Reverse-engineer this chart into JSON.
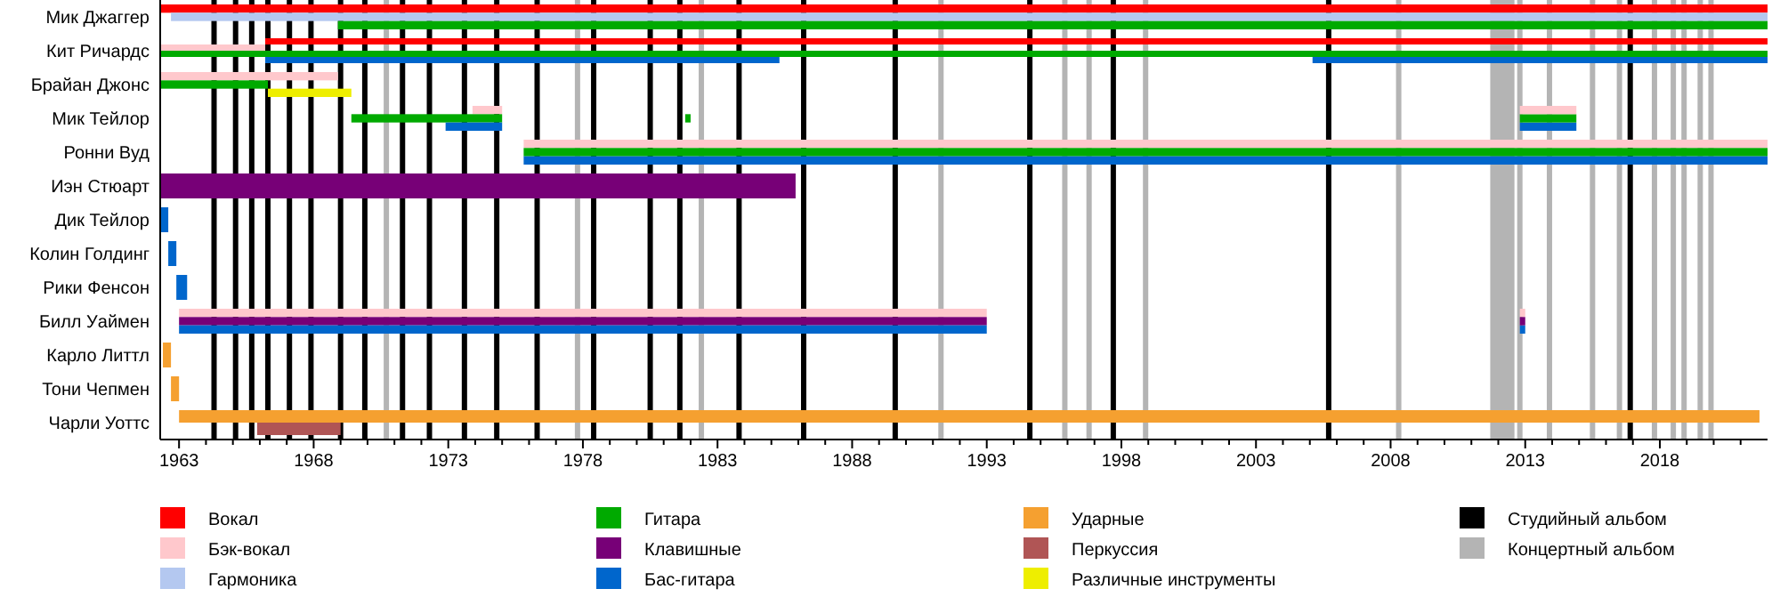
{
  "chart_data": {
    "type": "bar",
    "orientation": "horizontal",
    "legend": "bottom",
    "categories": [
      "Мик Джаггер",
      "Кит Ричардс",
      "Брайан Джонс",
      "Мик Тейлор",
      "Ронни Вуд",
      "Иэн Стюарт",
      "Дик Тейлор",
      "Колин Голдинг",
      "Рики Фенсон",
      "Билл Уаймен",
      "Карло Литтл",
      "Тони Чепмен",
      "Чарли Уоттс"
    ],
    "xlim": [
      1962.3,
      2022.0
    ],
    "xticks": [
      1963,
      {
        "value": 1964,
        "label": null
      },
      {
        "value": 1965,
        "label": null
      },
      {
        "value": 1966,
        "label": null
      },
      {
        "value": 1967,
        "label": null
      },
      1968,
      {
        "value": 1969,
        "label": null
      },
      {
        "value": 1970,
        "label": null
      },
      {
        "value": 1971,
        "label": null
      },
      {
        "value": 1972,
        "label": null
      },
      1973,
      {
        "value": 1974,
        "label": null
      },
      {
        "value": 1975,
        "label": null
      },
      {
        "value": 1976,
        "label": null
      },
      {
        "value": 1977,
        "label": null
      },
      1978,
      {
        "value": 1979,
        "label": null
      },
      {
        "value": 1980,
        "label": null
      },
      {
        "value": 1981,
        "label": null
      },
      {
        "value": 1982,
        "label": null
      },
      1983,
      {
        "value": 1984,
        "label": null
      },
      {
        "value": 1985,
        "label": null
      },
      {
        "value": 1986,
        "label": null
      },
      {
        "value": 1987,
        "label": null
      },
      1988,
      {
        "value": 1989,
        "label": null
      },
      {
        "value": 1990,
        "label": null
      },
      {
        "value": 1991,
        "label": null
      },
      {
        "value": 1992,
        "label": null
      },
      1993,
      {
        "value": 1994,
        "label": null
      },
      {
        "value": 1995,
        "label": null
      },
      {
        "value": 1996,
        "label": null
      },
      {
        "value": 1997,
        "label": null
      },
      1998,
      {
        "value": 1999,
        "label": null
      },
      {
        "value": 2000,
        "label": null
      },
      {
        "value": 2001,
        "label": null
      },
      {
        "value": 2002,
        "label": null
      },
      2003,
      {
        "value": 2004,
        "label": null
      },
      {
        "value": 2005,
        "label": null
      },
      {
        "value": 2006,
        "label": null
      },
      {
        "value": 2007,
        "label": null
      },
      2008,
      {
        "value": 2009,
        "label": null
      },
      {
        "value": 2010,
        "label": null
      },
      {
        "value": 2011,
        "label": null
      },
      {
        "value": 2012,
        "label": null
      },
      2013,
      {
        "value": 2014,
        "label": null
      },
      {
        "value": 2015,
        "label": null
      },
      {
        "value": 2016,
        "label": null
      },
      {
        "value": 2017,
        "label": null
      },
      2018,
      {
        "value": 2019,
        "label": null
      },
      {
        "value": 2020,
        "label": null
      },
      {
        "value": 2021,
        "label": null
      }
    ],
    "series": [
      {
        "name": "Вокал",
        "color": "#ff0000",
        "base": [
          1962.3,
          1966.2,
          null,
          null,
          null,
          null,
          null,
          null,
          null,
          null,
          null,
          null,
          null
        ],
        "values": [
          59.7,
          55.8,
          null,
          null,
          null,
          null,
          null,
          null,
          null,
          null,
          null,
          null,
          null
        ]
      },
      {
        "name": "Бэк-вокал",
        "color": "#ffc8cc",
        "base": [
          null,
          1962.3,
          1962.3,
          1973.9,
          1975.8,
          null,
          null,
          null,
          null,
          1963.0,
          null,
          null,
          null
        ],
        "values": [
          null,
          3.9,
          6.6,
          1.1,
          46.2,
          null,
          null,
          null,
          null,
          30.0,
          null,
          null,
          null
        ]
      },
      {
        "name": "Гармоника",
        "color": "#b4c8f0",
        "base": [
          1962.7,
          null,
          null,
          null,
          null,
          null,
          null,
          null,
          null,
          null,
          null,
          null,
          null
        ],
        "values": [
          59.3,
          null,
          null,
          null,
          null,
          null,
          null,
          null,
          null,
          null,
          null,
          null,
          null
        ]
      },
      {
        "name": "Гитара",
        "color": "#00aa00",
        "base": [
          1968.9,
          1962.3,
          1962.3,
          1969.4,
          1975.8,
          null,
          null,
          null,
          null,
          null,
          null,
          null,
          null
        ],
        "values": [
          53.1,
          59.7,
          4.0,
          5.6,
          46.2,
          null,
          null,
          null,
          null,
          null,
          null,
          null,
          null
        ]
      },
      {
        "name": "Клавишные",
        "color": "#770077",
        "base": [
          null,
          null,
          null,
          null,
          null,
          1962.3,
          null,
          null,
          null,
          1963.0,
          null,
          null,
          null
        ],
        "values": [
          null,
          null,
          null,
          null,
          null,
          23.6,
          null,
          null,
          null,
          30.0,
          null,
          null,
          null
        ]
      },
      {
        "name": "Бас-гитара",
        "color": "#0066cc",
        "base": [
          null,
          1966.2,
          null,
          1972.9,
          1975.8,
          null,
          1962.3,
          1962.6,
          1962.9,
          1963.0,
          null,
          null,
          null
        ],
        "values": [
          null,
          19.1,
          null,
          2.1,
          46.2,
          null,
          0.3,
          0.3,
          0.4,
          30.0,
          null,
          null,
          null
        ]
      },
      {
        "name": "Ударные",
        "color": "#f5a030",
        "base": [
          null,
          null,
          null,
          null,
          null,
          null,
          null,
          null,
          null,
          null,
          1962.4,
          1962.7,
          1963.0
        ],
        "values": [
          null,
          null,
          null,
          null,
          null,
          null,
          null,
          null,
          null,
          null,
          0.3,
          0.3,
          58.7
        ]
      },
      {
        "name": "Перкуссия",
        "color": "#b05555",
        "base": [
          null,
          null,
          null,
          null,
          null,
          null,
          null,
          null,
          null,
          null,
          null,
          null,
          1965.9
        ],
        "values": [
          null,
          null,
          null,
          null,
          null,
          null,
          null,
          null,
          null,
          null,
          null,
          null,
          3.1
        ]
      },
      {
        "name": "Различные инструменты",
        "color": "#eeee00",
        "base": [
          null,
          null,
          1966.3,
          null,
          null,
          null,
          null,
          null,
          null,
          null,
          null,
          null,
          null
        ],
        "values": [
          null,
          null,
          3.1,
          null,
          null,
          null,
          null,
          null,
          null,
          null,
          null,
          null,
          null
        ]
      },
      {
        "color": "#0066cc",
        "base": [
          null,
          2005.1,
          null,
          2012.8,
          null,
          null,
          null,
          null,
          null,
          2012.8,
          null,
          null,
          null
        ],
        "values": [
          null,
          16.9,
          null,
          2.1,
          null,
          null,
          null,
          null,
          null,
          0.2,
          null,
          null,
          null
        ]
      },
      {
        "color": "#00aa00",
        "base": [
          null,
          null,
          null,
          2012.8,
          null,
          null,
          null,
          null,
          null,
          null,
          null,
          null,
          null
        ],
        "values": [
          null,
          null,
          null,
          2.1,
          null,
          null,
          null,
          null,
          null,
          null,
          null,
          null,
          null
        ]
      },
      {
        "color": "#00aa00",
        "base": [
          null,
          null,
          null,
          1981.8,
          null,
          null,
          null,
          null,
          null,
          null,
          null,
          null,
          null
        ],
        "values": [
          null,
          null,
          null,
          0.2,
          null,
          null,
          null,
          null,
          null,
          null,
          null,
          null,
          null
        ]
      },
      {
        "color": "#ffc8cc",
        "base": [
          null,
          null,
          null,
          2012.8,
          null,
          null,
          null,
          null,
          null,
          2012.8,
          null,
          null,
          null
        ],
        "values": [
          null,
          null,
          null,
          2.1,
          null,
          null,
          null,
          null,
          null,
          0.2,
          null,
          null,
          null
        ]
      },
      {
        "color": "#770077",
        "base": [
          null,
          null,
          null,
          null,
          null,
          null,
          null,
          null,
          null,
          2012.8,
          null,
          null,
          null
        ],
        "values": [
          null,
          null,
          null,
          null,
          null,
          null,
          null,
          null,
          null,
          0.2,
          null,
          null,
          null
        ]
      }
    ],
    "ref_lines": [
      {
        "axis": "x",
        "value": 1964.3,
        "color": "#000000",
        "label": "Студийный альбом"
      },
      {
        "axis": "x",
        "value": 1965.1,
        "color": "#000000"
      },
      {
        "axis": "x",
        "value": 1965.7,
        "color": "#000000"
      },
      {
        "axis": "x",
        "value": 1966.3,
        "color": "#000000"
      },
      {
        "axis": "x",
        "value": 1967.1,
        "color": "#000000"
      },
      {
        "axis": "x",
        "value": 1967.9,
        "color": "#000000"
      },
      {
        "axis": "x",
        "value": 1969.0,
        "color": "#000000"
      },
      {
        "axis": "x",
        "value": 1969.9,
        "color": "#000000"
      },
      {
        "axis": "x",
        "value": 1971.3,
        "color": "#000000"
      },
      {
        "axis": "x",
        "value": 1972.3,
        "color": "#000000"
      },
      {
        "axis": "x",
        "value": 1973.6,
        "color": "#000000"
      },
      {
        "axis": "x",
        "value": 1974.8,
        "color": "#000000"
      },
      {
        "axis": "x",
        "value": 1976.3,
        "color": "#000000"
      },
      {
        "axis": "x",
        "value": 1978.4,
        "color": "#000000"
      },
      {
        "axis": "x",
        "value": 1980.5,
        "color": "#000000"
      },
      {
        "axis": "x",
        "value": 1981.6,
        "color": "#000000"
      },
      {
        "axis": "x",
        "value": 1983.8,
        "color": "#000000"
      },
      {
        "axis": "x",
        "value": 1986.2,
        "color": "#000000"
      },
      {
        "axis": "x",
        "value": 1989.6,
        "color": "#000000"
      },
      {
        "axis": "x",
        "value": 1994.6,
        "color": "#000000"
      },
      {
        "axis": "x",
        "value": 1997.7,
        "color": "#000000"
      },
      {
        "axis": "x",
        "value": 2005.7,
        "color": "#000000"
      },
      {
        "axis": "x",
        "value": 2016.9,
        "color": "#000000"
      },
      {
        "axis": "x",
        "value": 1970.7,
        "color": "#b4b4b4",
        "label": "Концертный альбом"
      },
      {
        "axis": "x",
        "value": 1977.8,
        "color": "#b4b4b4"
      },
      {
        "axis": "x",
        "value": 1982.4,
        "color": "#b4b4b4"
      },
      {
        "axis": "x",
        "value": 1991.3,
        "color": "#b4b4b4"
      },
      {
        "axis": "x",
        "value": 1995.9,
        "color": "#b4b4b4"
      },
      {
        "axis": "x",
        "value": 1996.8,
        "color": "#b4b4b4"
      },
      {
        "axis": "x",
        "value": 1998.9,
        "color": "#b4b4b4"
      },
      {
        "axis": "x",
        "value": 2008.3,
        "color": "#b4b4b4"
      },
      {
        "axis": "x",
        "value": 2012.8,
        "color": "#b4b4b4"
      },
      {
        "axis": "x",
        "value": 2013.9,
        "color": "#b4b4b4"
      },
      {
        "axis": "x",
        "value": 2015.5,
        "color": "#b4b4b4"
      },
      {
        "axis": "x",
        "value": 2016.5,
        "color": "#b4b4b4"
      },
      {
        "axis": "x",
        "value": 2017.8,
        "color": "#b4b4b4"
      },
      {
        "axis": "x",
        "value": 2018.5,
        "color": "#b4b4b4"
      },
      {
        "axis": "x",
        "value": 2018.9,
        "color": "#b4b4b4"
      },
      {
        "axis": "x",
        "value": 2019.5,
        "color": "#b4b4b4"
      },
      {
        "axis": "x",
        "value": 2019.9,
        "color": "#b4b4b4"
      }
    ],
    "bands": [
      {
        "axis": "x",
        "from": 2011.7,
        "to": 2012.6,
        "color": "#b4b4b4"
      }
    ]
  }
}
